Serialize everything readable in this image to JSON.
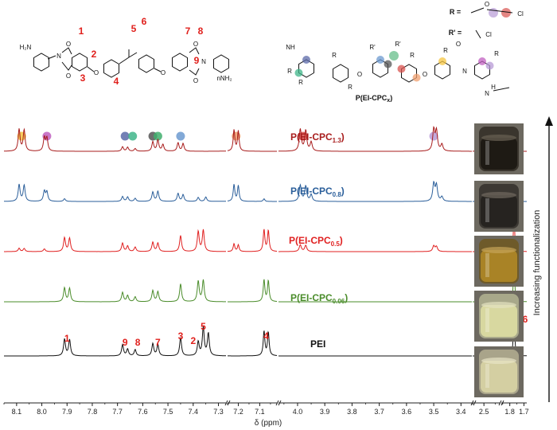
{
  "chart_data": {
    "type": "line",
    "xlabel": "δ (ppm)",
    "x_reversed": true,
    "axis_segments": [
      {
        "from": 8.15,
        "to": 7.27,
        "ticks": [
          8.1,
          8.0,
          7.9,
          7.8,
          7.7,
          7.6,
          7.5,
          7.4,
          7.3
        ]
      },
      {
        "from": 7.25,
        "to": 7.02,
        "ticks": [
          7.2,
          7.1
        ]
      },
      {
        "from": 4.07,
        "to": 3.36,
        "ticks": [
          4.0,
          3.9,
          3.8,
          3.7,
          3.6,
          3.5,
          3.4
        ]
      },
      {
        "from": 2.55,
        "to": 2.43,
        "ticks": [
          2.5
        ]
      },
      {
        "from": 1.86,
        "to": 1.68,
        "ticks": [
          1.8,
          1.7
        ]
      }
    ],
    "series": [
      {
        "name": "P(EI-CPC1.3)",
        "label_main": "P(EI-CPC",
        "label_sub": "1.3",
        "color": "#a81c1c",
        "peaks": [
          [
            8.09,
            0.98
          ],
          [
            8.07,
            0.95
          ],
          [
            7.99,
            0.6
          ],
          [
            7.98,
            0.58
          ],
          [
            7.68,
            0.2
          ],
          [
            7.66,
            0.18
          ],
          [
            7.63,
            0.12
          ],
          [
            7.56,
            0.42
          ],
          [
            7.54,
            0.5
          ],
          [
            7.52,
            0.3
          ],
          [
            7.46,
            0.38
          ],
          [
            7.44,
            0.34
          ],
          [
            7.22,
            0.95
          ],
          [
            7.2,
            0.9
          ],
          [
            3.99,
            0.98
          ],
          [
            3.97,
            0.92
          ],
          [
            3.95,
            0.4
          ],
          [
            3.5,
            0.95
          ],
          [
            3.49,
            0.88
          ],
          [
            3.47,
            0.3
          ],
          [
            2.5,
            0.3
          ],
          [
            1.77,
            0.1
          ]
        ]
      },
      {
        "name": "P(EI-CPC0.8)",
        "label_main": "P(EI-CPC",
        "label_sub": "0.8",
        "color": "#2a5e9a",
        "peaks": [
          [
            8.09,
            0.75
          ],
          [
            8.07,
            0.72
          ],
          [
            7.99,
            0.45
          ],
          [
            7.98,
            0.42
          ],
          [
            7.91,
            0.12
          ],
          [
            7.68,
            0.22
          ],
          [
            7.66,
            0.2
          ],
          [
            7.63,
            0.14
          ],
          [
            7.56,
            0.42
          ],
          [
            7.54,
            0.45
          ],
          [
            7.46,
            0.36
          ],
          [
            7.44,
            0.3
          ],
          [
            7.38,
            0.18
          ],
          [
            7.35,
            0.2
          ],
          [
            7.22,
            0.75
          ],
          [
            7.2,
            0.7
          ],
          [
            7.08,
            0.12
          ],
          [
            3.99,
            0.72
          ],
          [
            3.97,
            0.68
          ],
          [
            3.95,
            0.3
          ],
          [
            3.5,
            0.78
          ],
          [
            3.49,
            0.7
          ],
          [
            3.47,
            0.2
          ],
          [
            2.5,
            0.18
          ],
          [
            1.77,
            0.35
          ]
        ]
      },
      {
        "name": "P(EI-CPC0.5)",
        "label_main": "P(EI-CPC",
        "label_sub": "0.5",
        "color": "#e02020",
        "peaks": [
          [
            8.09,
            0.15
          ],
          [
            8.07,
            0.14
          ],
          [
            7.99,
            0.12
          ],
          [
            7.91,
            0.62
          ],
          [
            7.89,
            0.6
          ],
          [
            7.68,
            0.38
          ],
          [
            7.66,
            0.25
          ],
          [
            7.63,
            0.2
          ],
          [
            7.56,
            0.42
          ],
          [
            7.54,
            0.38
          ],
          [
            7.45,
            0.72
          ],
          [
            7.38,
            0.9
          ],
          [
            7.36,
            0.96
          ],
          [
            7.22,
            0.35
          ],
          [
            7.2,
            0.3
          ],
          [
            7.08,
            0.98
          ],
          [
            7.06,
            0.94
          ],
          [
            3.99,
            0.3
          ],
          [
            3.97,
            0.28
          ],
          [
            3.5,
            0.25
          ],
          [
            3.49,
            0.22
          ],
          [
            1.77,
            2.0
          ]
        ]
      },
      {
        "name": "P(EI-CPC0.06)",
        "label_main": "P(EI-CPC",
        "label_sub": "0.06",
        "color": "#4a8c2a",
        "peaks": [
          [
            7.91,
            0.62
          ],
          [
            7.89,
            0.6
          ],
          [
            7.68,
            0.42
          ],
          [
            7.66,
            0.28
          ],
          [
            7.63,
            0.22
          ],
          [
            7.56,
            0.5
          ],
          [
            7.54,
            0.45
          ],
          [
            7.45,
            0.8
          ],
          [
            7.38,
            0.92
          ],
          [
            7.36,
            0.96
          ],
          [
            7.08,
            0.98
          ],
          [
            7.06,
            0.94
          ],
          [
            1.77,
            2.3
          ]
        ]
      },
      {
        "name": "PEI",
        "label_main": "PEI",
        "label_sub": "",
        "color": "#111111",
        "peaks": [
          [
            7.91,
            0.75
          ],
          [
            7.89,
            0.72
          ],
          [
            7.68,
            0.5
          ],
          [
            7.66,
            0.3
          ],
          [
            7.63,
            0.28
          ],
          [
            7.56,
            0.55
          ],
          [
            7.54,
            0.5
          ],
          [
            7.45,
            0.82
          ],
          [
            7.38,
            0.62
          ],
          [
            7.36,
            1.25
          ],
          [
            7.34,
            1.0
          ],
          [
            7.08,
            1.1
          ],
          [
            7.06,
            1.05
          ],
          [
            1.77,
            2.6
          ]
        ]
      }
    ],
    "peak_assignments": [
      {
        "label": "1",
        "x": 7.9
      },
      {
        "label": "9",
        "x": 7.67
      },
      {
        "label": "8",
        "x": 7.62
      },
      {
        "label": "7",
        "x": 7.54
      },
      {
        "label": "3",
        "x": 7.45
      },
      {
        "label": "2",
        "x": 7.4
      },
      {
        "label": "5",
        "x": 7.36
      },
      {
        "label": "4",
        "x": 7.07
      },
      {
        "label": "6",
        "x": 1.77
      }
    ],
    "marker_dots": [
      {
        "x": 8.08,
        "color": "#f5c542"
      },
      {
        "x": 7.98,
        "color": "#c05fc0"
      },
      {
        "x": 7.67,
        "color": "#5b6aa8"
      },
      {
        "x": 7.64,
        "color": "#3fb58a"
      },
      {
        "x": 7.56,
        "color": "#555555"
      },
      {
        "x": 7.54,
        "color": "#3fae6c"
      },
      {
        "x": 7.45,
        "color": "#6c9ad0"
      },
      {
        "x": 7.21,
        "color": "#f0a070"
      },
      {
        "x": 3.98,
        "color": "#d9534f"
      },
      {
        "x": 3.5,
        "color": "#b79ad6"
      },
      {
        "x": 2.5,
        "color": "#b0d8a0"
      }
    ]
  },
  "structures": {
    "left_numbers": [
      "1",
      "2",
      "3",
      "4",
      "5",
      "6",
      "7",
      "8",
      "9"
    ],
    "nh2_left": "H₂N",
    "nh2_right": "nNH₂",
    "r_def": "R =",
    "rprime_def": "R' =",
    "cl": "Cl",
    "o_label": "O",
    "n_label": "N",
    "nh_label": "NH",
    "h_label": "H",
    "polymer_name": "P(EI-CPCx)",
    "polymer_main": "P(EI-CPC",
    "polymer_sub": "x",
    "polymer_end": ")"
  },
  "side_label": "Increasing functionalization"
}
